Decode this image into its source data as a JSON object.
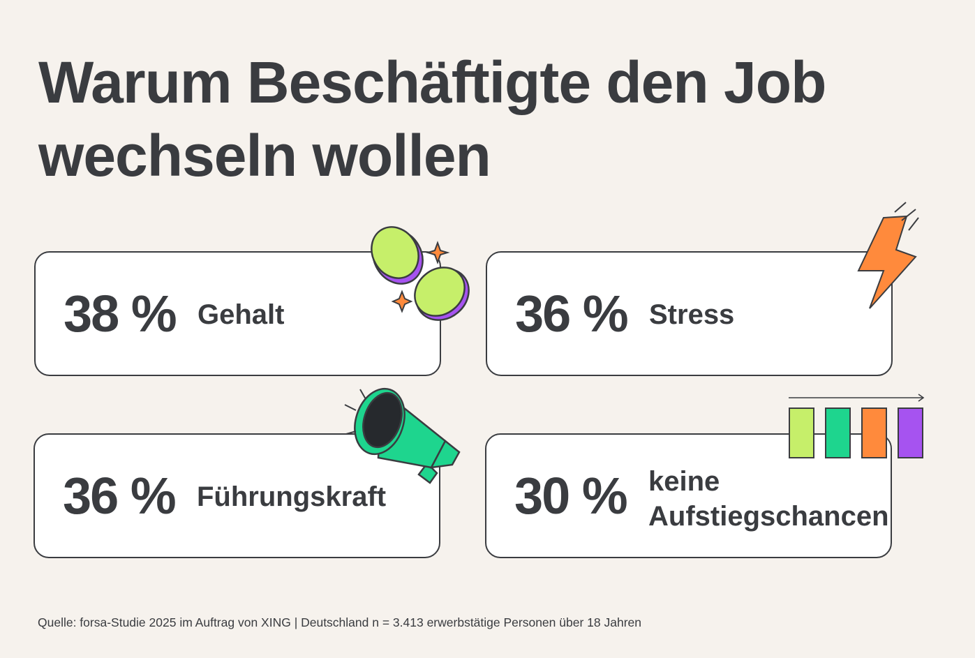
{
  "title_line1": "Warum Beschäftigte den Job",
  "title_line2": "wechseln wollen",
  "chart_data": {
    "type": "table",
    "title": "Warum Beschäftigte den Job wechseln wollen",
    "categories": [
      "Gehalt",
      "Stress",
      "Führungskraft",
      "keine Aufstiegschancen"
    ],
    "values": [
      38,
      36,
      36,
      30
    ],
    "unit": "%"
  },
  "cards": [
    {
      "value": "38 %",
      "label": "Gehalt"
    },
    {
      "value": "36 %",
      "label": "Stress"
    },
    {
      "value": "36 %",
      "label": "Führungskraft"
    },
    {
      "value": "30 %",
      "label_line1": "keine",
      "label_line2": "Aufstiegschancen"
    }
  ],
  "source": "Quelle: forsa-Studie 2025 im Auftrag von XING | Deutschland n = 3.413 erwerbstätige Personen über 18 Jahren",
  "colors": {
    "background": "#f6f2ed",
    "text": "#3a3c40",
    "lime": "#c6ef6a",
    "green": "#1ed58e",
    "orange": "#ff8a3c",
    "purple": "#a653f0"
  },
  "icons": [
    "coins-icon",
    "sparkle-icon",
    "lightning-icon",
    "megaphone-icon",
    "growth-bars-icon"
  ]
}
